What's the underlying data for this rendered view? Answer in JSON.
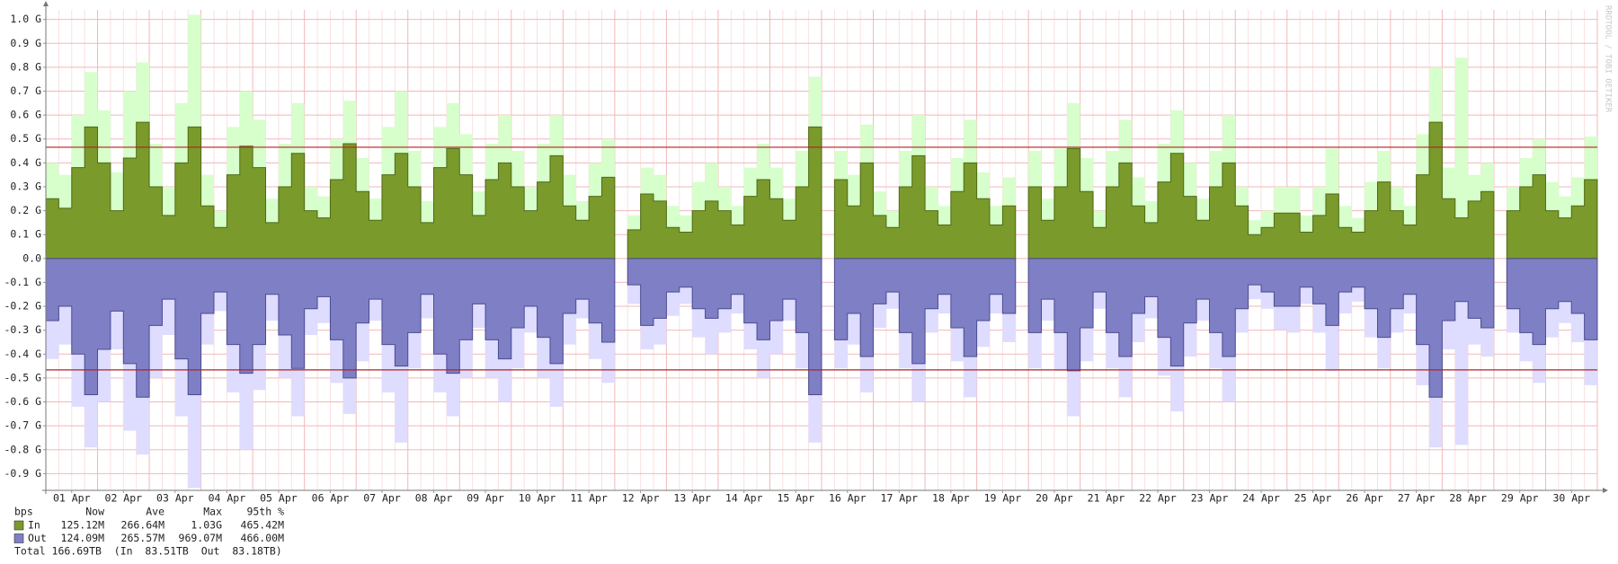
{
  "chart_data": {
    "type": "area",
    "watermark": "RRDTOOL / TOBI OETIKER",
    "xlim": [
      0,
      30
    ],
    "xticks": [
      {
        "value": 0.5,
        "label": "01 Apr"
      },
      {
        "value": 1.5,
        "label": "02 Apr"
      },
      {
        "value": 2.5,
        "label": "03 Apr"
      },
      {
        "value": 3.5,
        "label": "04 Apr"
      },
      {
        "value": 4.5,
        "label": "05 Apr"
      },
      {
        "value": 5.5,
        "label": "06 Apr"
      },
      {
        "value": 6.5,
        "label": "07 Apr"
      },
      {
        "value": 7.5,
        "label": "08 Apr"
      },
      {
        "value": 8.5,
        "label": "09 Apr"
      },
      {
        "value": 9.5,
        "label": "10 Apr"
      },
      {
        "value": 10.5,
        "label": "11 Apr"
      },
      {
        "value": 11.5,
        "label": "12 Apr"
      },
      {
        "value": 12.5,
        "label": "13 Apr"
      },
      {
        "value": 13.5,
        "label": "14 Apr"
      },
      {
        "value": 14.5,
        "label": "15 Apr"
      },
      {
        "value": 15.5,
        "label": "16 Apr"
      },
      {
        "value": 16.5,
        "label": "17 Apr"
      },
      {
        "value": 17.5,
        "label": "18 Apr"
      },
      {
        "value": 18.5,
        "label": "19 Apr"
      },
      {
        "value": 19.5,
        "label": "20 Apr"
      },
      {
        "value": 20.5,
        "label": "21 Apr"
      },
      {
        "value": 21.5,
        "label": "22 Apr"
      },
      {
        "value": 22.5,
        "label": "23 Apr"
      },
      {
        "value": 23.5,
        "label": "24 Apr"
      },
      {
        "value": 24.5,
        "label": "25 Apr"
      },
      {
        "value": 25.5,
        "label": "26 Apr"
      },
      {
        "value": 26.5,
        "label": "27 Apr"
      },
      {
        "value": 27.5,
        "label": "28 Apr"
      },
      {
        "value": 28.5,
        "label": "29 Apr"
      },
      {
        "value": 29.5,
        "label": "30 Apr"
      }
    ],
    "ylim": [
      -0.97,
      1.04
    ],
    "yticks": [
      {
        "value": 1.0,
        "label": "1.0 G"
      },
      {
        "value": 0.9,
        "label": "0.9 G"
      },
      {
        "value": 0.8,
        "label": "0.8 G"
      },
      {
        "value": 0.7,
        "label": "0.7 G"
      },
      {
        "value": 0.6,
        "label": "0.6 G"
      },
      {
        "value": 0.5,
        "label": "0.5 G"
      },
      {
        "value": 0.4,
        "label": "0.4 G"
      },
      {
        "value": 0.3,
        "label": "0.3 G"
      },
      {
        "value": 0.2,
        "label": "0.2 G"
      },
      {
        "value": 0.1,
        "label": "0.1 G"
      },
      {
        "value": 0,
        "label": "0.0"
      },
      {
        "value": -0.1,
        "label": "-0.1 G"
      },
      {
        "value": -0.2,
        "label": "-0.2 G"
      },
      {
        "value": -0.3,
        "label": "-0.3 G"
      },
      {
        "value": -0.4,
        "label": "-0.4 G"
      },
      {
        "value": -0.5,
        "label": "-0.5 G"
      },
      {
        "value": -0.6,
        "label": "-0.6 G"
      },
      {
        "value": -0.7,
        "label": "-0.7 G"
      },
      {
        "value": -0.8,
        "label": "-0.8 G"
      },
      {
        "value": -0.9,
        "label": "-0.9 G"
      }
    ],
    "grid": true,
    "percentile_lines": [
      {
        "value": 0.46542,
        "color": "#b22222"
      },
      {
        "value": -0.466,
        "color": "#b22222"
      }
    ],
    "x": [
      0.125,
      0.375,
      0.625,
      0.875,
      1.125,
      1.375,
      1.625,
      1.875,
      2.125,
      2.375,
      2.625,
      2.875,
      3.125,
      3.375,
      3.625,
      3.875,
      4.125,
      4.375,
      4.625,
      4.875,
      5.125,
      5.375,
      5.625,
      5.875,
      6.125,
      6.375,
      6.625,
      6.875,
      7.125,
      7.375,
      7.625,
      7.875,
      8.125,
      8.375,
      8.625,
      8.875,
      9.125,
      9.375,
      9.625,
      9.875,
      10.125,
      10.375,
      10.625,
      10.875,
      11.125,
      11.375,
      11.625,
      11.875,
      12.125,
      12.375,
      12.625,
      12.875,
      13.125,
      13.375,
      13.625,
      13.875,
      14.125,
      14.375,
      14.625,
      14.875,
      15.125,
      15.375,
      15.625,
      15.875,
      16.125,
      16.375,
      16.625,
      16.875,
      17.125,
      17.375,
      17.625,
      17.875,
      18.125,
      18.375,
      18.625,
      18.875,
      19.125,
      19.375,
      19.625,
      19.875,
      20.125,
      20.375,
      20.625,
      20.875,
      21.125,
      21.375,
      21.625,
      21.875,
      22.125,
      22.375,
      22.625,
      22.875,
      23.125,
      23.375,
      23.625,
      23.875,
      24.125,
      24.375,
      24.625,
      24.875,
      25.125,
      25.375,
      25.625,
      25.875,
      26.125,
      26.375,
      26.625,
      26.875,
      27.125,
      27.375,
      27.625,
      27.875,
      28.125,
      28.375,
      28.625,
      28.875,
      29.125,
      29.375,
      29.625,
      29.875
    ],
    "series": [
      {
        "name": "In",
        "color": "#7a9a2b",
        "line_color": "#4f6a14",
        "max_color": "#d6ffcc",
        "values": [
          0.25,
          0.21,
          0.38,
          0.55,
          0.4,
          0.2,
          0.42,
          0.57,
          0.3,
          0.18,
          0.4,
          0.55,
          0.22,
          0.13,
          0.35,
          0.47,
          0.38,
          0.15,
          0.3,
          0.44,
          0.2,
          0.17,
          0.33,
          0.48,
          0.28,
          0.16,
          0.35,
          0.44,
          0.3,
          0.15,
          0.38,
          0.46,
          0.35,
          0.18,
          0.33,
          0.4,
          0.3,
          0.2,
          0.32,
          0.43,
          0.22,
          0.16,
          0.26,
          0.34,
          null,
          0.12,
          0.27,
          0.24,
          0.13,
          0.11,
          0.2,
          0.24,
          0.2,
          0.14,
          0.26,
          0.33,
          0.25,
          0.16,
          0.3,
          0.55,
          null,
          0.33,
          0.22,
          0.4,
          0.18,
          0.13,
          0.3,
          0.43,
          0.2,
          0.14,
          0.28,
          0.4,
          0.25,
          0.14,
          0.22,
          null,
          0.3,
          0.16,
          0.3,
          0.46,
          0.28,
          0.13,
          0.3,
          0.4,
          0.22,
          0.15,
          0.32,
          0.44,
          0.26,
          0.16,
          0.3,
          0.4,
          0.22,
          0.1,
          0.13,
          0.19,
          0.19,
          0.11,
          0.18,
          0.27,
          0.13,
          0.11,
          0.2,
          0.32,
          0.2,
          0.14,
          0.35,
          0.57,
          0.25,
          0.17,
          0.24,
          0.28,
          null,
          0.2,
          0.3,
          0.35,
          0.2,
          0.17,
          0.22,
          0.33
        ],
        "max_values": [
          0.4,
          0.35,
          0.6,
          0.78,
          0.62,
          0.36,
          0.7,
          0.82,
          0.48,
          0.3,
          0.65,
          1.02,
          0.35,
          0.2,
          0.55,
          0.7,
          0.58,
          0.25,
          0.48,
          0.65,
          0.3,
          0.26,
          0.5,
          0.66,
          0.42,
          0.25,
          0.55,
          0.7,
          0.45,
          0.24,
          0.55,
          0.65,
          0.52,
          0.28,
          0.48,
          0.6,
          0.45,
          0.3,
          0.48,
          0.6,
          0.35,
          0.24,
          0.4,
          0.5,
          null,
          0.18,
          0.38,
          0.35,
          0.22,
          0.18,
          0.32,
          0.4,
          0.3,
          0.22,
          0.38,
          0.48,
          0.38,
          0.25,
          0.45,
          0.76,
          null,
          0.45,
          0.35,
          0.56,
          0.28,
          0.2,
          0.45,
          0.6,
          0.3,
          0.22,
          0.42,
          0.58,
          0.36,
          0.22,
          0.34,
          null,
          0.45,
          0.25,
          0.46,
          0.65,
          0.42,
          0.2,
          0.45,
          0.58,
          0.34,
          0.24,
          0.48,
          0.62,
          0.4,
          0.25,
          0.45,
          0.6,
          0.3,
          0.16,
          0.2,
          0.3,
          0.3,
          0.18,
          0.3,
          0.46,
          0.22,
          0.17,
          0.32,
          0.45,
          0.3,
          0.22,
          0.52,
          0.8,
          0.38,
          0.84,
          0.35,
          0.4,
          null,
          0.3,
          0.42,
          0.5,
          0.32,
          0.26,
          0.34,
          0.51
        ]
      },
      {
        "name": "Out",
        "color": "#7f7fc6",
        "line_color": "#4b4b8f",
        "max_color": "#dedcff",
        "values": [
          -0.26,
          -0.2,
          -0.4,
          -0.57,
          -0.38,
          -0.22,
          -0.44,
          -0.58,
          -0.28,
          -0.17,
          -0.42,
          -0.57,
          -0.23,
          -0.14,
          -0.36,
          -0.48,
          -0.36,
          -0.15,
          -0.32,
          -0.46,
          -0.21,
          -0.16,
          -0.34,
          -0.5,
          -0.27,
          -0.17,
          -0.36,
          -0.45,
          -0.31,
          -0.15,
          -0.4,
          -0.48,
          -0.34,
          -0.19,
          -0.34,
          -0.42,
          -0.29,
          -0.2,
          -0.33,
          -0.44,
          -0.23,
          -0.17,
          -0.27,
          -0.35,
          null,
          -0.11,
          -0.28,
          -0.25,
          -0.14,
          -0.12,
          -0.21,
          -0.25,
          -0.21,
          -0.15,
          -0.27,
          -0.34,
          -0.26,
          -0.17,
          -0.31,
          -0.57,
          null,
          -0.34,
          -0.23,
          -0.41,
          -0.19,
          -0.14,
          -0.31,
          -0.44,
          -0.21,
          -0.15,
          -0.29,
          -0.41,
          -0.26,
          -0.15,
          -0.23,
          null,
          -0.31,
          -0.17,
          -0.31,
          -0.47,
          -0.29,
          -0.14,
          -0.31,
          -0.41,
          -0.23,
          -0.16,
          -0.33,
          -0.45,
          -0.27,
          -0.17,
          -0.31,
          -0.41,
          -0.21,
          -0.11,
          -0.14,
          -0.2,
          -0.2,
          -0.12,
          -0.19,
          -0.28,
          -0.14,
          -0.12,
          -0.21,
          -0.33,
          -0.21,
          -0.15,
          -0.36,
          -0.58,
          -0.26,
          -0.18,
          -0.25,
          -0.29,
          null,
          -0.21,
          -0.31,
          -0.36,
          -0.21,
          -0.18,
          -0.23,
          -0.34
        ],
        "max_values": [
          -0.42,
          -0.36,
          -0.62,
          -0.79,
          -0.6,
          -0.38,
          -0.72,
          -0.82,
          -0.5,
          -0.32,
          -0.66,
          -0.96,
          -0.36,
          -0.22,
          -0.56,
          -0.8,
          -0.55,
          -0.26,
          -0.5,
          -0.66,
          -0.32,
          -0.27,
          -0.52,
          -0.65,
          -0.43,
          -0.26,
          -0.56,
          -0.77,
          -0.46,
          -0.25,
          -0.56,
          -0.66,
          -0.5,
          -0.29,
          -0.5,
          -0.6,
          -0.46,
          -0.31,
          -0.5,
          -0.62,
          -0.36,
          -0.25,
          -0.42,
          -0.52,
          null,
          -0.19,
          -0.38,
          -0.36,
          -0.24,
          -0.19,
          -0.33,
          -0.4,
          -0.31,
          -0.23,
          -0.38,
          -0.5,
          -0.4,
          -0.26,
          -0.46,
          -0.77,
          null,
          -0.46,
          -0.36,
          -0.56,
          -0.29,
          -0.21,
          -0.46,
          -0.6,
          -0.31,
          -0.23,
          -0.43,
          -0.58,
          -0.37,
          -0.23,
          -0.35,
          null,
          -0.46,
          -0.26,
          -0.47,
          -0.66,
          -0.43,
          -0.21,
          -0.46,
          -0.58,
          -0.35,
          -0.25,
          -0.49,
          -0.64,
          -0.41,
          -0.26,
          -0.46,
          -0.6,
          -0.31,
          -0.17,
          -0.21,
          -0.3,
          -0.31,
          -0.19,
          -0.31,
          -0.47,
          -0.23,
          -0.18,
          -0.33,
          -0.46,
          -0.31,
          -0.23,
          -0.53,
          -0.79,
          -0.38,
          -0.78,
          -0.36,
          -0.41,
          null,
          -0.31,
          -0.43,
          -0.52,
          -0.33,
          -0.27,
          -0.35,
          -0.53
        ]
      }
    ],
    "legend": {
      "header": [
        "bps",
        "Now",
        "Ave",
        "Max",
        "95th %"
      ],
      "rows": [
        [
          "125.12M",
          "266.64M",
          "1.03G",
          "465.42M"
        ],
        [
          "124.09M",
          "265.57M",
          "969.07M",
          "466.00M"
        ]
      ],
      "total": "Total 166.69TB  (In  83.51TB  Out  83.18TB)"
    }
  }
}
